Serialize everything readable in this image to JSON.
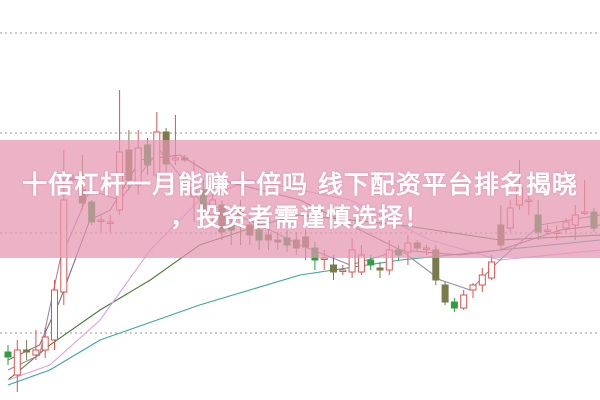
{
  "headline": {
    "line1": "十倍杠杆一月能赚十倍吗 线下配资平台排名揭晓",
    "line2": "，投资者需谨慎选择！"
  },
  "colors": {
    "up": "#d9534f",
    "down_olive": "#7a7a4a",
    "down_green": "#2e9e3e",
    "banner": "#e496b2",
    "grid": "#999999"
  },
  "chart_data": {
    "type": "candlestick",
    "title": "",
    "xlabel": "",
    "ylabel": "",
    "ylim": [
      0,
      400
    ],
    "grid": {
      "horizontal_dotted": true,
      "levels": [
        367,
        267,
        167,
        67
      ]
    },
    "candles": [
      [
        48,
        43,
        55,
        35
      ],
      [
        25,
        50,
        60,
        8
      ],
      [
        50,
        48,
        60,
        40
      ],
      [
        45,
        50,
        70,
        40
      ],
      [
        50,
        63,
        72,
        42
      ],
      [
        60,
        110,
        120,
        50
      ],
      [
        108,
        200,
        250,
        95
      ],
      [
        222,
        222,
        225,
        218
      ],
      [
        210,
        197,
        245,
        190
      ],
      [
        198,
        178,
        200,
        175
      ],
      [
        180,
        180,
        185,
        168
      ],
      [
        178,
        178,
        185,
        168
      ],
      [
        190,
        248,
        310,
        185
      ],
      [
        250,
        220,
        270,
        210
      ],
      [
        215,
        252,
        270,
        205
      ],
      [
        255,
        235,
        262,
        225
      ],
      [
        225,
        268,
        288,
        222
      ],
      [
        268,
        236,
        272,
        228
      ],
      [
        240,
        242,
        285,
        235
      ],
      [
        242,
        240,
        245,
        238
      ],
      [
        203,
        213,
        240,
        178
      ],
      [
        210,
        190,
        220,
        185
      ],
      [
        185,
        200,
        205,
        175
      ],
      [
        195,
        168,
        200,
        160
      ],
      [
        175,
        170,
        185,
        155
      ],
      [
        190,
        185,
        200,
        155
      ],
      [
        175,
        165,
        185,
        155
      ],
      [
        170,
        160,
        190,
        150
      ],
      [
        165,
        160,
        170,
        150
      ],
      [
        160,
        158,
        168,
        150
      ],
      [
        162,
        155,
        170,
        148
      ],
      [
        160,
        152,
        168,
        145
      ],
      [
        163,
        153,
        170,
        140
      ],
      [
        152,
        140,
        158,
        130
      ],
      [
        142,
        142,
        150,
        130
      ],
      [
        135,
        128,
        145,
        120
      ],
      [
        130,
        130,
        135,
        125
      ],
      [
        128,
        150,
        162,
        122
      ],
      [
        128,
        145,
        155,
        125
      ],
      [
        140,
        135,
        145,
        130
      ],
      [
        132,
        130,
        138,
        122
      ],
      [
        130,
        150,
        160,
        125
      ],
      [
        150,
        145,
        155,
        140
      ],
      [
        148,
        157,
        165,
        135
      ],
      [
        157,
        152,
        160,
        148
      ],
      [
        152,
        152,
        155,
        145
      ],
      [
        150,
        120,
        155,
        115
      ],
      [
        115,
        98,
        118,
        95
      ],
      [
        98,
        92,
        102,
        88
      ],
      [
        92,
        105,
        110,
        90
      ],
      [
        110,
        115,
        117,
        102
      ],
      [
        115,
        125,
        132,
        108
      ],
      [
        122,
        138,
        145,
        120
      ],
      [
        175,
        155,
        195,
        150
      ],
      [
        172,
        192,
        200,
        168
      ],
      [
        195,
        212,
        240,
        190
      ],
      [
        200,
        200,
        205,
        185
      ],
      [
        185,
        168,
        200,
        160
      ],
      [
        170,
        170,
        175,
        165
      ],
      [
        168,
        168,
        175,
        160
      ],
      [
        172,
        178,
        182,
        168
      ],
      [
        175,
        185,
        195,
        160
      ],
      [
        188,
        188,
        220,
        185
      ],
      [
        188,
        172,
        192,
        168
      ]
    ],
    "moving_averages": [
      {
        "color": "#3aa6a0",
        "points": [
          [
            0,
            15
          ],
          [
            4.5,
            30
          ],
          [
            9.9,
            60
          ],
          [
            20.6,
            95
          ],
          [
            31.4,
            125
          ],
          [
            42.2,
            140
          ],
          [
            52.9,
            150
          ],
          [
            63.7,
            160
          ]
        ]
      },
      {
        "color": "#4a7a3a",
        "points": [
          [
            0,
            20
          ],
          [
            4.5,
            55
          ],
          [
            9.9,
            90
          ],
          [
            15.3,
            120
          ],
          [
            20.6,
            155
          ],
          [
            23.9,
            165
          ],
          [
            27.1,
            175
          ],
          [
            31.4,
            185
          ],
          [
            42.2,
            175
          ],
          [
            52.9,
            160
          ],
          [
            63.7,
            165
          ]
        ]
      },
      {
        "color": "#e0a0e0",
        "points": [
          [
            0,
            20
          ],
          [
            4.5,
            35
          ],
          [
            9.9,
            80
          ],
          [
            15.3,
            150
          ],
          [
            20.6,
            200
          ],
          [
            26,
            220
          ],
          [
            36.8,
            200
          ],
          [
            45.4,
            160
          ],
          [
            52.9,
            140
          ],
          [
            63.7,
            150
          ]
        ]
      },
      {
        "color": "#8a6a7a",
        "points": [
          [
            0,
            40
          ],
          [
            3.4,
            55
          ],
          [
            5.6,
            100
          ],
          [
            8.8,
            180
          ],
          [
            11,
            190
          ],
          [
            14.2,
            240
          ],
          [
            18.5,
            245
          ],
          [
            22.8,
            220
          ],
          [
            31.4,
            200
          ],
          [
            42.2,
            150
          ],
          [
            48.6,
            145
          ],
          [
            52.9,
            150
          ],
          [
            59.4,
            170
          ],
          [
            63.7,
            175
          ]
        ]
      },
      {
        "color": "#9a8aa0",
        "points": [
          [
            0,
            30
          ],
          [
            3.4,
            45
          ],
          [
            5.6,
            140
          ],
          [
            8.8,
            210
          ],
          [
            12,
            200
          ],
          [
            16.3,
            250
          ],
          [
            20.6,
            200
          ],
          [
            27.1,
            175
          ],
          [
            31.4,
            155
          ],
          [
            36.8,
            135
          ],
          [
            42.2,
            150
          ],
          [
            46.5,
            120
          ],
          [
            49.7,
            110
          ],
          [
            52.9,
            140
          ],
          [
            57.2,
            175
          ],
          [
            63.7,
            185
          ]
        ]
      }
    ]
  }
}
